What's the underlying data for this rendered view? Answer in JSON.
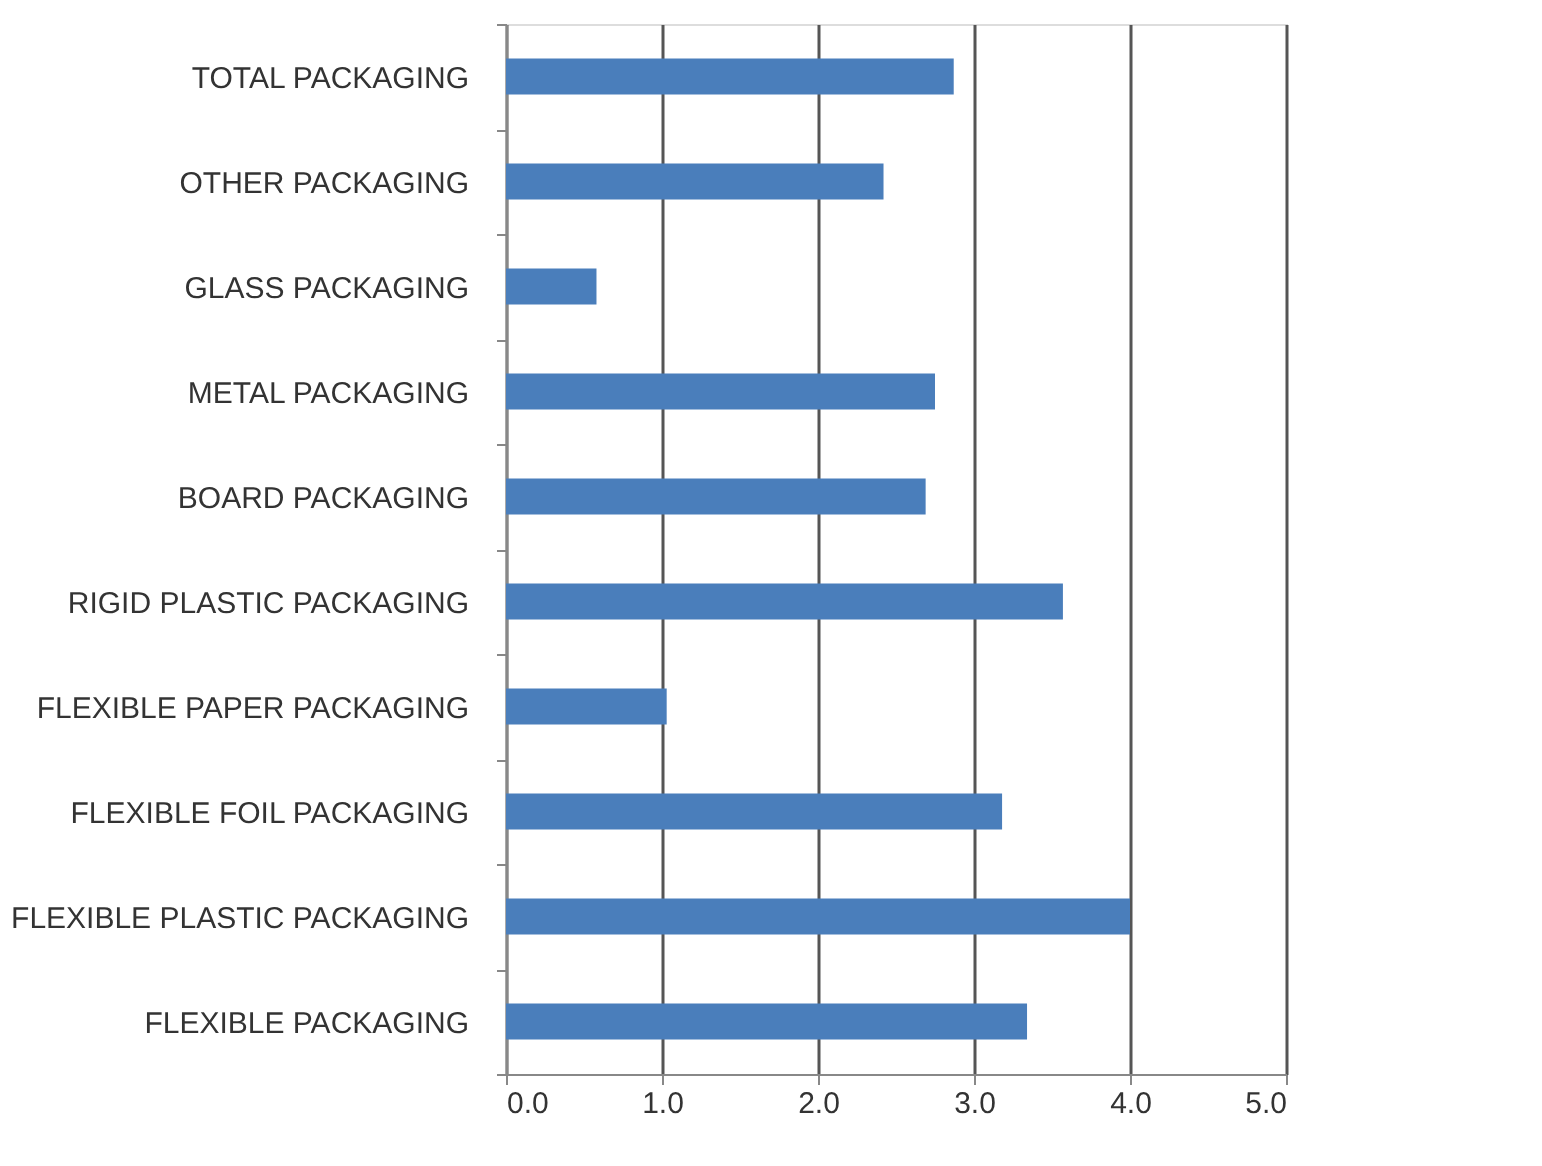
{
  "chart_data": {
    "type": "bar",
    "orientation": "horizontal",
    "categories": [
      "TOTAL PACKAGING",
      "OTHER PACKAGING",
      "GLASS PACKAGING",
      "METAL PACKAGING",
      "BOARD PACKAGING",
      "RIGID PLASTIC PACKAGING",
      "FLEXIBLE PAPER PACKAGING",
      "FLEXIBLE FOIL PACKAGING",
      "FLEXIBLE PLASTIC PACKAGING",
      "FLEXIBLE PACKAGING"
    ],
    "values": [
      2.87,
      2.42,
      0.58,
      2.75,
      2.69,
      3.57,
      1.03,
      3.18,
      4.0,
      3.34
    ],
    "color": "#4a7ebb",
    "xlim": [
      0,
      5
    ],
    "xticks": [
      {
        "value": 0,
        "label": "0.0"
      },
      {
        "value": 1,
        "label": "1.0"
      },
      {
        "value": 2,
        "label": "2.0"
      },
      {
        "value": 3,
        "label": "3.0"
      },
      {
        "value": 4,
        "label": "4.0"
      },
      {
        "value": 5,
        "label": "5.0"
      }
    ],
    "grid": "x"
  }
}
